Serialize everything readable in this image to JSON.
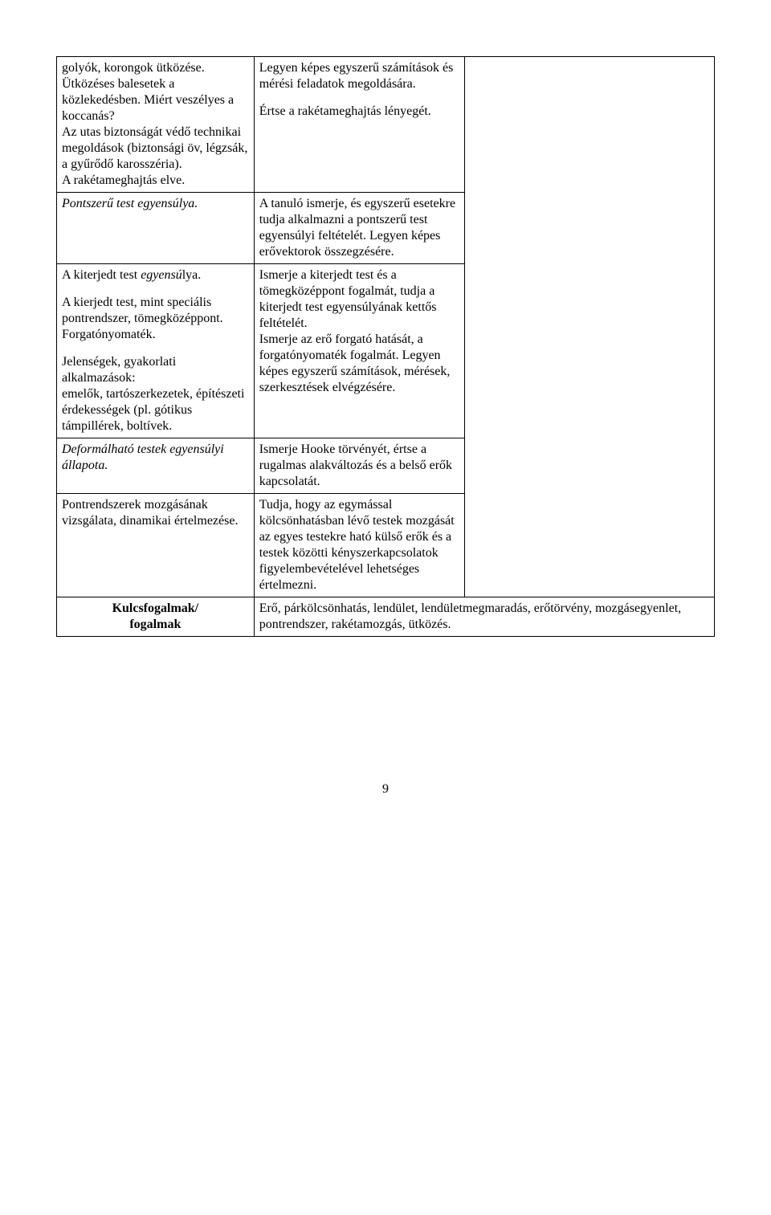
{
  "row1": {
    "left": {
      "p1": "golyók, korongok ütközése.",
      "p2": "Ütközéses balesetek a közlekedésben. Miért veszélyes a koccanás?",
      "p3": "Az utas biztonságát védő technikai megoldások (biztonsági öv, légzsák, a gyűrődő karosszéria).",
      "p4": "A rakétameghajtás elve."
    },
    "mid": {
      "p1": "Legyen képes egyszerű számítások és mérési feladatok megoldására.",
      "p2": "Értse a rakétameghajtás lényegét."
    }
  },
  "row2": {
    "left": {
      "p1": "Pontszerű test egyensúlya."
    },
    "mid": {
      "p1": "A tanuló ismerje, és egyszerű esetekre tudja alkalmazni a pontszerű test egyensúlyi feltételét. Legyen képes erővektorok összegzésére."
    }
  },
  "row3": {
    "left": {
      "p1a": "A kiterjedt test ",
      "p1b_i": "egyensú",
      "p1c": "lya.",
      "p2": "A kierjedt test, mint speciális pontrendszer, tömegközéppont. Forgatónyomaték.",
      "p3": "Jelenségek, gyakorlati alkalmazások:",
      "p4": "emelők, tartószerkezetek, építészeti érdekességek (pl. gótikus támpillérek, boltívek."
    },
    "mid": {
      "p1": "Ismerje a kiterjedt test és a tömegközéppont fogalmát, tudja a kiterjedt test egyensúlyának kettős feltételét.",
      "p2": "Ismerje az erő forgató hatását, a forgatónyomaték fogalmát. Legyen képes egyszerű számítások, mérések, szerkesztések elvégzésére."
    }
  },
  "row4": {
    "left": {
      "p1": "Deformálható testek egyensúlyi állapota."
    },
    "mid": {
      "p1": "Ismerje Hooke törvényét, értse a rugalmas alakváltozás és a belső erők kapcsolatát."
    }
  },
  "row5": {
    "left": {
      "p1": "Pontrendszerek mozgásának vizsgálata, dinamikai értelmezése."
    },
    "mid": {
      "p1": "Tudja, hogy az egymással kölcsönhatásban lévő testek mozgását az egyes testekre ható külső erők és a testek közötti kényszerkapcsolatok figyelembevételével lehetséges értelmezni."
    }
  },
  "row6": {
    "label_l1": "Kulcsfogalmak/",
    "label_l2": "fogalmak",
    "text": "Erő, párkölcsönhatás, lendület, lendületmegmaradás, erőtörvény, mozgásegyenlet, pontrendszer, rakétamozgás, ütközés."
  },
  "page_number": "9"
}
